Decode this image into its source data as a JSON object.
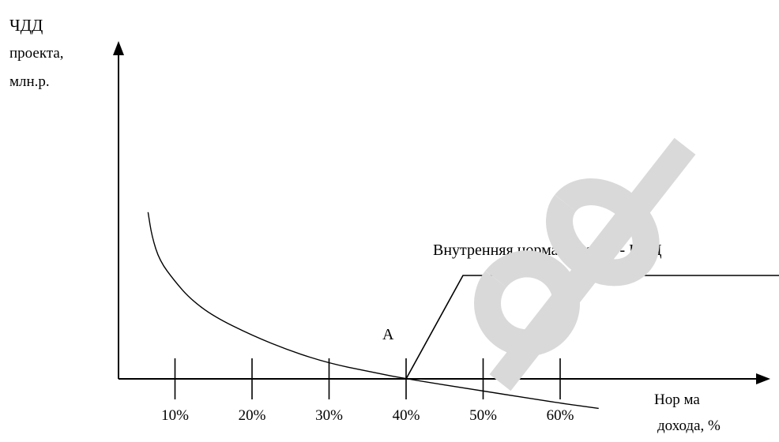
{
  "chart_data": {
    "type": "line",
    "title": "",
    "ylabel_lines": [
      "ЧДД",
      "проекта,",
      "млн.р."
    ],
    "xlabel_lines": [
      "Нор ма",
      "дохода, %"
    ],
    "x_ticks": [
      10,
      20,
      30,
      40,
      50,
      60
    ],
    "x_tick_labels": [
      "10%",
      "20%",
      "30%",
      "40%",
      "50%",
      "60%"
    ],
    "xlim": [
      3,
      80
    ],
    "ylim": [
      -1.1,
      5.5
    ],
    "grid": false,
    "series": [
      {
        "x": [
          6.5,
          7,
          8,
          10,
          12,
          15,
          20,
          25,
          30,
          35,
          40,
          50,
          60,
          65
        ],
        "y": [
          4.8,
          4.1,
          3.4,
          2.8,
          2.3,
          1.8,
          1.25,
          0.8,
          0.45,
          0.22,
          0.0,
          -0.35,
          -0.7,
          -0.85
        ]
      }
    ],
    "point_label": "А",
    "annotation": "Внутренняя норма доходов - ВНД"
  },
  "watermark": {
    "color": "#d9d9d9"
  }
}
